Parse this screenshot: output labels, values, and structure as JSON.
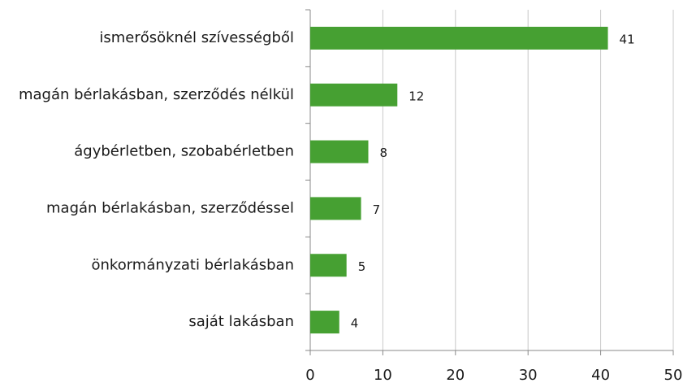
{
  "chart_data": {
    "type": "bar",
    "orientation": "horizontal",
    "categories": [
      "ismerősöknél szívességből",
      "magán bérlakásban, szerződés nélkül",
      "ágybérletben, szobabérletben",
      "magán bérlakásban, szerződéssel",
      "önkormányzati bérlakásban",
      "saját lakásban"
    ],
    "values": [
      41,
      12,
      8,
      7,
      5,
      4
    ],
    "color": "#46a032",
    "xlim": [
      0,
      50
    ],
    "xticks": [
      0,
      10,
      20,
      30,
      40,
      50
    ],
    "grid": true
  }
}
